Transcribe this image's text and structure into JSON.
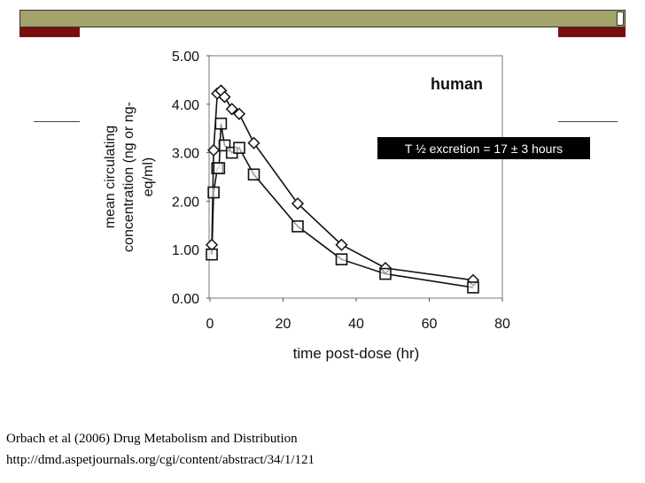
{
  "slide": {
    "colors": {
      "band": "#a3a36b",
      "accent": "#7a0e0e"
    },
    "annotation": "T ½ excretion = 17 ± 3 hours",
    "citation_line1": "Orbach et al (2006) Drug Metabolism and Distribution",
    "citation_line2": "http://dmd.aspetjournals.org/cgi/content/abstract/34/1/121"
  },
  "chart_data": {
    "type": "line",
    "title": "human",
    "xlabel": "time post-dose (hr)",
    "ylabel_line1": "mean circulating",
    "ylabel_line2": "concentration (ng or ng-",
    "ylabel_line3": "eq/ml)",
    "xlim": [
      0,
      80
    ],
    "ylim": [
      0,
      5
    ],
    "xticks": [
      0,
      20,
      40,
      60,
      80
    ],
    "xtick_labels": [
      "0",
      "20",
      "40",
      "60",
      "80"
    ],
    "yticks": [
      0,
      1,
      2,
      3,
      4,
      5
    ],
    "ytick_labels": [
      "0.00",
      "1.00",
      "2.00",
      "3.00",
      "4.00",
      "5.00"
    ],
    "series": [
      {
        "name": "diamond",
        "marker": "diamond",
        "x": [
          0.5,
          1,
          2,
          3,
          4,
          6,
          8,
          12,
          24,
          36,
          48,
          72
        ],
        "y": [
          1.1,
          3.05,
          4.22,
          4.28,
          4.15,
          3.9,
          3.8,
          3.2,
          1.95,
          1.1,
          0.62,
          0.37
        ]
      },
      {
        "name": "square",
        "marker": "square",
        "x": [
          0.5,
          1,
          2,
          2.5,
          3,
          4,
          6,
          8,
          12,
          24,
          36,
          48,
          72
        ],
        "y": [
          0.9,
          2.18,
          2.68,
          2.68,
          3.6,
          3.15,
          3.0,
          3.1,
          2.55,
          1.48,
          0.8,
          0.5,
          0.22
        ]
      }
    ]
  }
}
